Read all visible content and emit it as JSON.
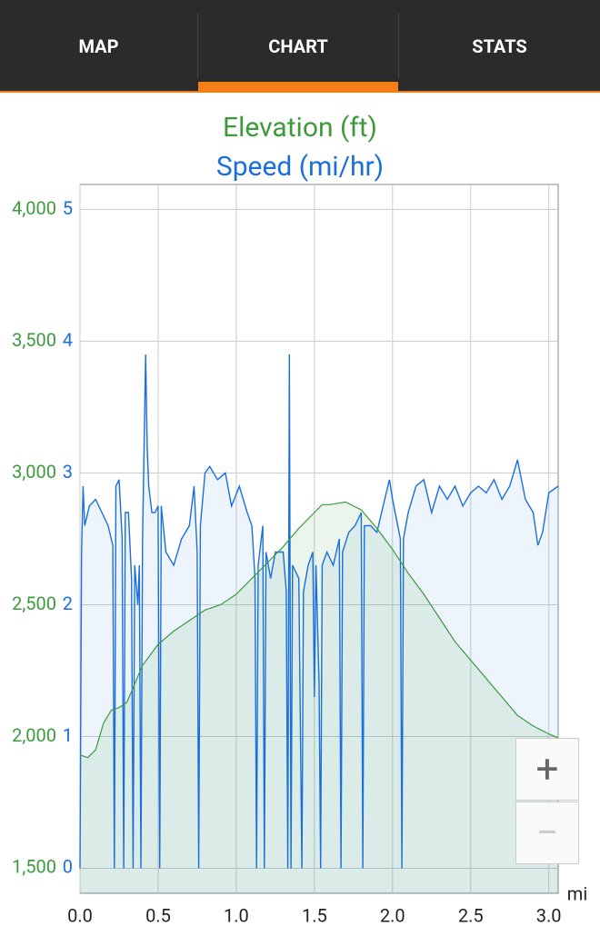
{
  "tabs": [
    "MAP",
    "CHART",
    "STATS"
  ],
  "chart_data": {
    "type": "line",
    "x_label": "mi",
    "xlim": [
      0,
      3.06
    ],
    "xticks": [
      {
        "value": 0,
        "label": "0.0"
      },
      0.5,
      {
        "value": 1,
        "label": "1.0"
      },
      1.5,
      {
        "value": 2,
        "label": "2.0"
      },
      2.5,
      {
        "value": 3,
        "label": "3.0"
      }
    ],
    "ylim": [
      1405,
      4095
    ],
    "yticks": [
      {
        "value": 1500,
        "label": "1,500"
      },
      {
        "value": 2000,
        "label": "2,000"
      },
      {
        "value": 2500,
        "label": "2,500"
      },
      {
        "value": 3000,
        "label": "3,000"
      },
      {
        "value": 3500,
        "label": "3,500"
      },
      {
        "value": 4000,
        "label": "4,000"
      }
    ],
    "y2lim": [
      -0.19,
      5.19
    ],
    "y2ticks": [
      0,
      1,
      2,
      3,
      4,
      5
    ],
    "grid": true,
    "series": [
      {
        "name": "Elevation (ft)",
        "color": "#3c9a3c",
        "fill": "#3c9a3c",
        "axis": "y",
        "x": [
          0,
          0.05,
          0.1,
          0.15,
          0.2,
          0.25,
          0.3,
          0.35,
          0.4,
          0.5,
          0.6,
          0.7,
          0.8,
          0.9,
          1.0,
          1.1,
          1.2,
          1.3,
          1.4,
          1.5,
          1.55,
          1.6,
          1.7,
          1.8,
          1.9,
          2.0,
          2.1,
          2.2,
          2.3,
          2.4,
          2.5,
          2.6,
          2.7,
          2.8,
          2.9,
          3.0,
          3.06
        ],
        "values": [
          1930,
          1920,
          1950,
          2050,
          2100,
          2110,
          2130,
          2200,
          2270,
          2350,
          2400,
          2440,
          2480,
          2500,
          2540,
          2600,
          2660,
          2720,
          2790,
          2850,
          2880,
          2880,
          2890,
          2860,
          2790,
          2710,
          2620,
          2540,
          2450,
          2360,
          2290,
          2220,
          2150,
          2080,
          2040,
          2010,
          1995
        ]
      },
      {
        "name": "Speed (mi/hr)",
        "color": "#1a6fdc",
        "fill": "#1a6fdc",
        "axis": "y2",
        "x": [
          0,
          0.01,
          0.02,
          0.03,
          0.06,
          0.1,
          0.14,
          0.18,
          0.21,
          0.22,
          0.23,
          0.25,
          0.27,
          0.28,
          0.29,
          0.31,
          0.33,
          0.34,
          0.35,
          0.37,
          0.38,
          0.39,
          0.4,
          0.42,
          0.43,
          0.44,
          0.46,
          0.48,
          0.5,
          0.51,
          0.52,
          0.55,
          0.6,
          0.65,
          0.7,
          0.73,
          0.75,
          0.76,
          0.77,
          0.8,
          0.83,
          0.88,
          0.93,
          0.97,
          1.02,
          1.07,
          1.1,
          1.12,
          1.13,
          1.14,
          1.17,
          1.18,
          1.19,
          1.22,
          1.25,
          1.3,
          1.32,
          1.33,
          1.34,
          1.35,
          1.36,
          1.4,
          1.42,
          1.43,
          1.46,
          1.49,
          1.5,
          1.51,
          1.53,
          1.54,
          1.55,
          1.58,
          1.62,
          1.66,
          1.67,
          1.68,
          1.72,
          1.76,
          1.8,
          1.81,
          1.82,
          1.86,
          1.9,
          1.95,
          1.98,
          2.0,
          2.05,
          2.06,
          2.07,
          2.1,
          2.15,
          2.2,
          2.25,
          2.3,
          2.35,
          2.4,
          2.45,
          2.5,
          2.55,
          2.6,
          2.65,
          2.7,
          2.75,
          2.8,
          2.85,
          2.9,
          2.93,
          2.96,
          3.0,
          3.06
        ],
        "values": [
          0,
          2.4,
          2.9,
          2.6,
          2.75,
          2.8,
          2.7,
          2.6,
          2.45,
          0,
          2.9,
          2.95,
          2.5,
          0,
          2.7,
          2.7,
          2.2,
          0,
          2.3,
          2.0,
          2.3,
          0,
          2.5,
          3.9,
          3.2,
          2.9,
          2.7,
          2.7,
          2.75,
          0,
          2.75,
          2.4,
          2.3,
          2.5,
          2.6,
          2.9,
          2.4,
          0,
          2.6,
          3.0,
          3.05,
          2.95,
          3.0,
          2.75,
          2.9,
          2.7,
          2.6,
          2.2,
          0,
          2.3,
          2.6,
          0,
          2.4,
          2.2,
          2.4,
          2.4,
          2.1,
          0,
          3.9,
          0,
          2.3,
          2.2,
          0,
          2.1,
          2.3,
          2.4,
          1.3,
          2.3,
          1.4,
          0,
          2.3,
          2.4,
          2.3,
          2.5,
          0,
          2.4,
          2.55,
          2.6,
          2.7,
          0,
          2.6,
          2.6,
          2.55,
          2.8,
          2.95,
          2.8,
          2.5,
          0,
          2.5,
          2.7,
          2.9,
          2.95,
          2.7,
          2.9,
          2.8,
          2.9,
          2.75,
          2.85,
          2.9,
          2.85,
          2.95,
          2.8,
          2.9,
          3.1,
          2.8,
          2.7,
          2.45,
          2.55,
          2.85,
          2.9
        ]
      }
    ]
  }
}
